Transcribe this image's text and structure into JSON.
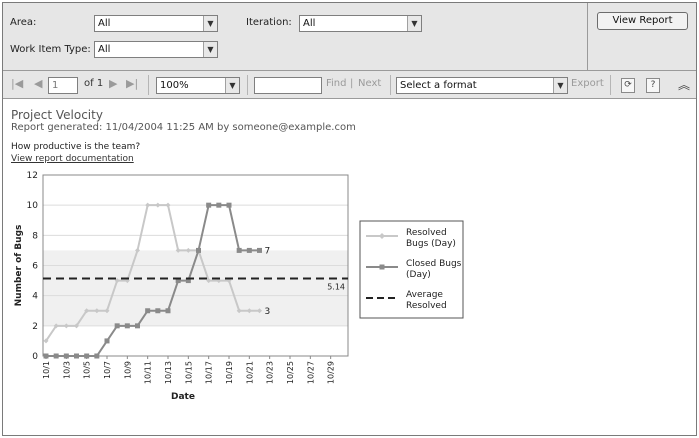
{
  "params": {
    "area_label": "Area:",
    "area_value": "All",
    "iteration_label": "Iteration:",
    "iteration_value": "All",
    "work_item_type_label": "Work Item Type:",
    "work_item_type_value": "All",
    "view_report_label": "View Report"
  },
  "toolbar": {
    "page_value": "1",
    "page_of": "of 1",
    "zoom_value": "100%",
    "find_value": "",
    "find_label": "Find",
    "separator": "|",
    "next_label": "Next",
    "format_value": "Select a format",
    "export_label": "Export",
    "icons": [
      "first-page-icon",
      "previous-page-icon",
      "next-page-icon",
      "last-page-icon",
      "refresh-icon",
      "help-icon",
      "collapse-icon"
    ]
  },
  "report": {
    "title": "Project Velocity",
    "generated": "Report generated: 11/04/2004 11:25 AM by someone@example.com",
    "question": "How productive is the team?",
    "doc_link": "View report documentation"
  },
  "chart_data": {
    "type": "line",
    "xlabel": "Date",
    "ylabel": "Number of Bugs",
    "ylim": [
      0,
      12
    ],
    "yticks": [
      "0",
      "2",
      "4",
      "6",
      "8",
      "10",
      "12"
    ],
    "tick_labels": [
      "10/1",
      "10/3",
      "10/5",
      "10/7",
      "10/9",
      "10/11",
      "10/13",
      "10/15",
      "10/17",
      "10/19",
      "10/21",
      "10/23",
      "10/25",
      "10/27",
      "10/29"
    ],
    "x_count": 30,
    "legend_position": "right",
    "grid": true,
    "series": [
      {
        "name": "Resolved Bugs (Day)",
        "color": "#c8c8c8",
        "values": [
          1,
          2,
          2,
          2,
          3,
          3,
          3,
          5,
          5,
          7,
          10,
          10,
          10,
          7,
          7,
          7,
          5,
          5,
          5,
          3,
          3,
          3
        ]
      },
      {
        "name": "Closed Bugs (Day)",
        "color": "#8a8a8a",
        "values": [
          0,
          0,
          0,
          0,
          0,
          0,
          1,
          2,
          2,
          2,
          3,
          3,
          3,
          5,
          5,
          7,
          10,
          10,
          10,
          7,
          7,
          7
        ]
      }
    ],
    "reference_line": {
      "name": "Average Resolved",
      "value": 5.14,
      "label": "5.14",
      "color": "#222222"
    },
    "end_labels": {
      "closed": "7",
      "resolved": "3"
    }
  }
}
